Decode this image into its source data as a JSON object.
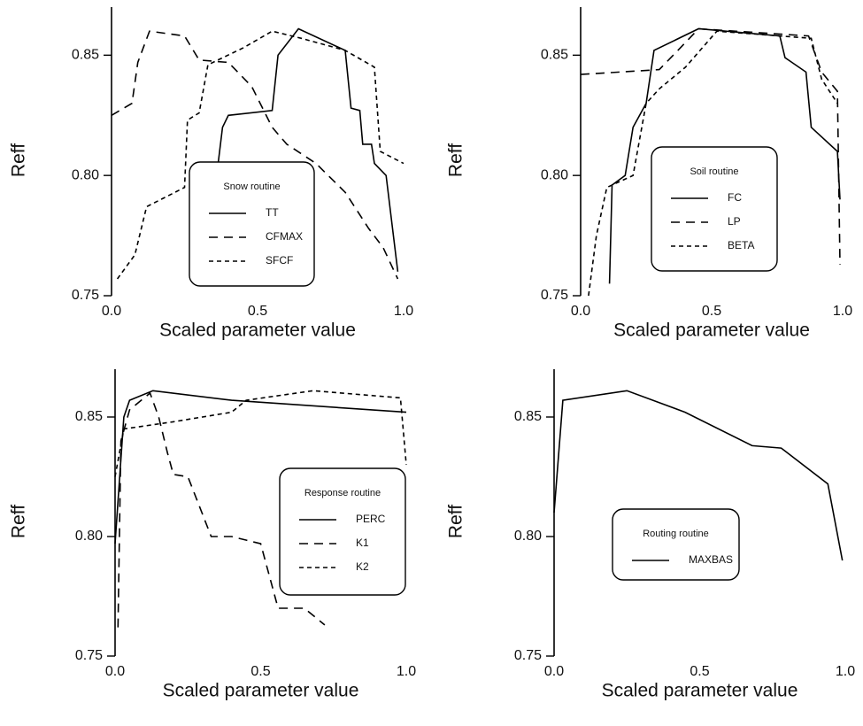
{
  "chart_data": [
    {
      "type": "line",
      "xlabel": "Scaled parameter value",
      "ylabel": "Reff",
      "legend_title": "Snow routine",
      "xlim": [
        0,
        1
      ],
      "ylim": [
        0.75,
        0.87
      ],
      "xticks": [
        {
          "value": 0,
          "label": "0.0"
        },
        0.5,
        {
          "value": 1,
          "label": "1.0"
        }
      ],
      "yticks": [
        0.75,
        {
          "value": 0.8,
          "label": "0.80"
        },
        0.85
      ],
      "series": [
        {
          "name": "TT",
          "color": "#000",
          "line_style": "solid",
          "x": [
            0.35,
            0.38,
            0.4,
            0.55,
            0.57,
            0.64,
            0.8,
            0.82,
            0.85,
            0.86,
            0.89,
            0.9,
            0.94,
            0.98
          ],
          "values": [
            0.79,
            0.82,
            0.825,
            0.827,
            0.85,
            0.861,
            0.852,
            0.828,
            0.827,
            0.813,
            0.813,
            0.805,
            0.8,
            0.76
          ]
        },
        {
          "name": "CFMAX",
          "color": "#000",
          "line_style": "dashed",
          "x": [
            0.0,
            0.07,
            0.09,
            0.13,
            0.25,
            0.3,
            0.4,
            0.48,
            0.55,
            0.6,
            0.7,
            0.8,
            0.88,
            0.93,
            0.98
          ],
          "values": [
            0.825,
            0.83,
            0.847,
            0.86,
            0.858,
            0.848,
            0.847,
            0.837,
            0.82,
            0.813,
            0.805,
            0.793,
            0.778,
            0.77,
            0.757
          ]
        },
        {
          "name": "SFCF",
          "color": "#000",
          "line_style": "dotted",
          "x": [
            0.02,
            0.08,
            0.12,
            0.25,
            0.26,
            0.3,
            0.33,
            0.45,
            0.55,
            0.65,
            0.8,
            0.9,
            0.92,
            1.0
          ],
          "values": [
            0.757,
            0.767,
            0.787,
            0.795,
            0.823,
            0.826,
            0.846,
            0.853,
            0.86,
            0.857,
            0.852,
            0.845,
            0.81,
            0.805
          ]
        }
      ]
    },
    {
      "type": "line",
      "xlabel": "Scaled parameter value",
      "ylabel": "Reff",
      "legend_title": "Soil routine",
      "xlim": [
        0,
        1
      ],
      "ylim": [
        0.75,
        0.87
      ],
      "xticks": [
        {
          "value": 0,
          "label": "0.0"
        },
        0.5,
        {
          "value": 1,
          "label": "1.0"
        }
      ],
      "yticks": [
        0.75,
        {
          "value": 0.8,
          "label": "0.80"
        },
        0.85
      ],
      "series": [
        {
          "name": "FC",
          "color": "#000",
          "line_style": "solid",
          "x": [
            0.11,
            0.12,
            0.17,
            0.2,
            0.25,
            0.28,
            0.45,
            0.76,
            0.78,
            0.86,
            0.88,
            0.98,
            0.99
          ],
          "values": [
            0.755,
            0.796,
            0.8,
            0.82,
            0.83,
            0.852,
            0.861,
            0.858,
            0.849,
            0.843,
            0.82,
            0.81,
            0.79
          ]
        },
        {
          "name": "LP",
          "color": "#000",
          "line_style": "dashed",
          "x": [
            0.0,
            0.3,
            0.38,
            0.45,
            0.87,
            0.92,
            0.98,
            0.99
          ],
          "values": [
            0.842,
            0.844,
            0.853,
            0.861,
            0.858,
            0.843,
            0.835,
            0.763
          ]
        },
        {
          "name": "BETA",
          "color": "#000",
          "line_style": "dotted",
          "x": [
            0.03,
            0.06,
            0.1,
            0.2,
            0.25,
            0.3,
            0.4,
            0.52,
            0.88,
            0.92,
            0.98
          ],
          "values": [
            0.75,
            0.775,
            0.795,
            0.8,
            0.83,
            0.836,
            0.845,
            0.86,
            0.857,
            0.84,
            0.83
          ]
        }
      ]
    },
    {
      "type": "line",
      "xlabel": "Scaled parameter value",
      "ylabel": "Reff",
      "legend_title": "Response routine",
      "xlim": [
        0,
        1
      ],
      "ylim": [
        0.75,
        0.87
      ],
      "xticks": [
        {
          "value": 0,
          "label": "0.0"
        },
        0.5,
        {
          "value": 1,
          "label": "1.0"
        }
      ],
      "yticks": [
        0.75,
        {
          "value": 0.8,
          "label": "0.80"
        },
        0.85
      ],
      "series": [
        {
          "name": "PERC",
          "color": "#000",
          "line_style": "solid",
          "x": [
            0.0,
            0.03,
            0.05,
            0.13,
            0.4,
            1.0
          ],
          "values": [
            0.797,
            0.85,
            0.857,
            0.861,
            0.857,
            0.852
          ]
        },
        {
          "name": "K1",
          "color": "#000",
          "line_style": "dashed",
          "x": [
            0.01,
            0.02,
            0.05,
            0.12,
            0.15,
            0.18,
            0.2,
            0.25,
            0.33,
            0.4,
            0.5,
            0.56,
            0.65,
            0.72
          ],
          "values": [
            0.762,
            0.84,
            0.853,
            0.86,
            0.85,
            0.835,
            0.826,
            0.825,
            0.8,
            0.8,
            0.797,
            0.77,
            0.77,
            0.763
          ]
        },
        {
          "name": "K2",
          "color": "#000",
          "line_style": "dotted",
          "x": [
            0.0,
            0.03,
            0.2,
            0.4,
            0.45,
            0.68,
            0.98,
            1.0
          ],
          "values": [
            0.825,
            0.845,
            0.848,
            0.852,
            0.857,
            0.861,
            0.858,
            0.83
          ]
        }
      ]
    },
    {
      "type": "line",
      "xlabel": "Scaled parameter value",
      "ylabel": "Reff",
      "legend_title": "Routing routine",
      "xlim": [
        0,
        1
      ],
      "ylim": [
        0.75,
        0.87
      ],
      "xticks": [
        {
          "value": 0,
          "label": "0.0"
        },
        0.5,
        {
          "value": 1,
          "label": "1.0"
        }
      ],
      "yticks": [
        0.75,
        {
          "value": 0.8,
          "label": "0.80"
        },
        0.85
      ],
      "series": [
        {
          "name": "MAXBAS",
          "color": "#000",
          "line_style": "solid",
          "x": [
            0.0,
            0.03,
            0.25,
            0.45,
            0.68,
            0.78,
            0.94,
            0.99
          ],
          "values": [
            0.81,
            0.857,
            0.861,
            0.852,
            0.838,
            0.837,
            0.822,
            0.79
          ]
        }
      ]
    }
  ]
}
